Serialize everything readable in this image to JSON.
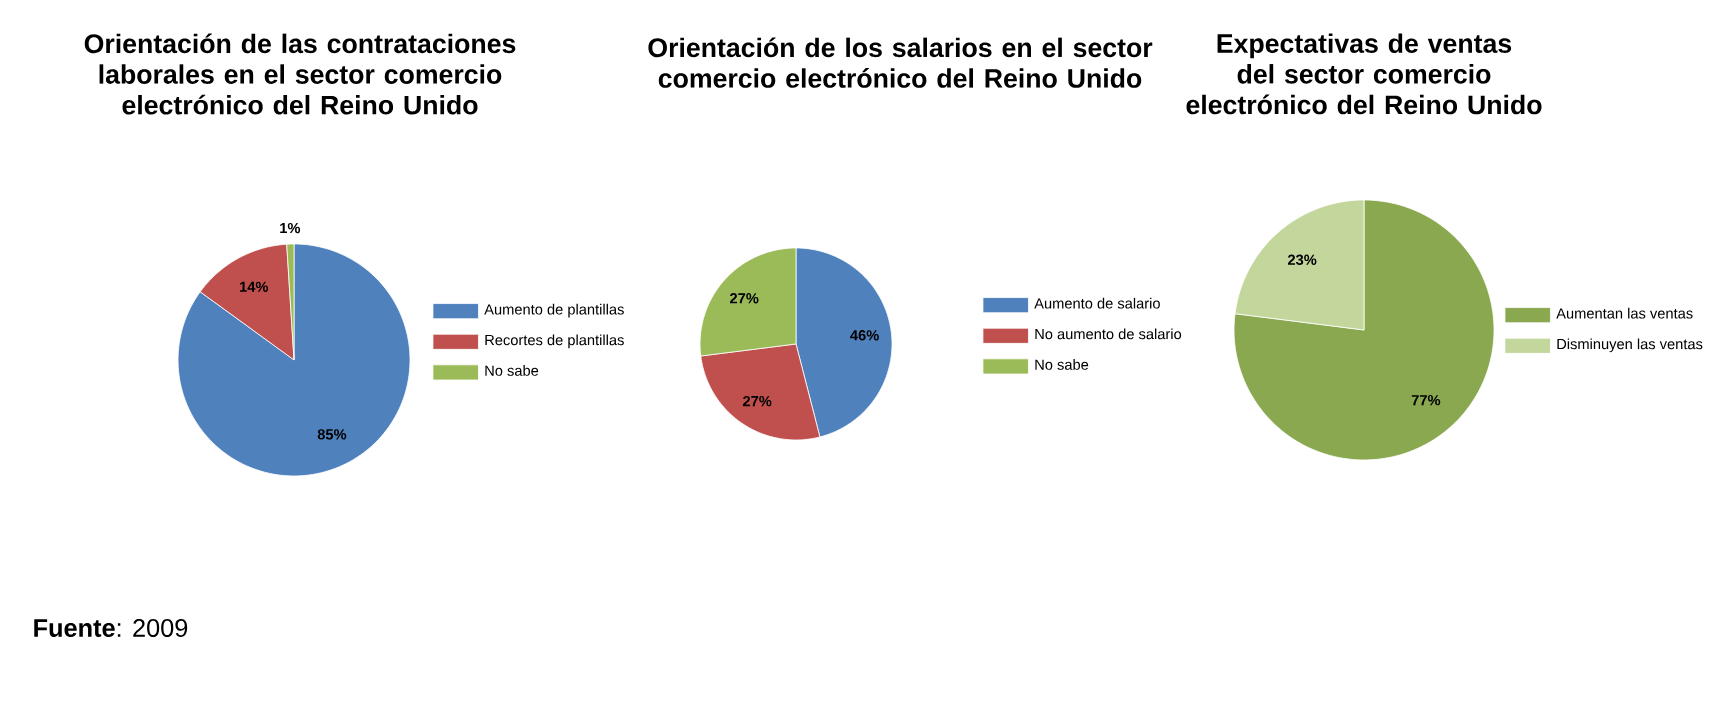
{
  "chart_data": [
    {
      "type": "pie",
      "title": "Orientación de las contrataciones laborales en el sector comercio electrónico del Reino Unido",
      "categories": [
        "Aumento de plantillas",
        "Recortes de plantillas",
        "No sabe"
      ],
      "values": [
        85,
        14,
        1
      ],
      "colors": [
        "#4f81bd",
        "#c0504d",
        "#9bbb59"
      ],
      "value_labels": [
        "85%",
        "14%",
        "1%"
      ],
      "legend": "right",
      "annotations": [
        "**Fuente**: 2009"
      ]
    },
    {
      "type": "pie",
      "title": "Orientación de los salarios en el sector comercio electrónico del Reino Unido",
      "categories": [
        "Aumento de salario",
        "No aumento de salario",
        "No sabe"
      ],
      "values": [
        46,
        27,
        27
      ],
      "colors": [
        "#4f81bd",
        "#c0504d",
        "#9bbb59"
      ],
      "value_labels": [
        "46%",
        "27%",
        "27%"
      ],
      "legend": "right"
    },
    {
      "type": "pie",
      "title": "Expectativas de ventas del sector comercio electrónico del Reino Unido",
      "categories": [
        "Aumentan las ventas",
        "Disminuyen las ventas"
      ],
      "values": [
        77,
        23
      ],
      "colors": [
        "#8aa84f",
        "#c3d69b"
      ],
      "value_labels": [
        "77%",
        "23%"
      ],
      "legend": "right"
    }
  ]
}
